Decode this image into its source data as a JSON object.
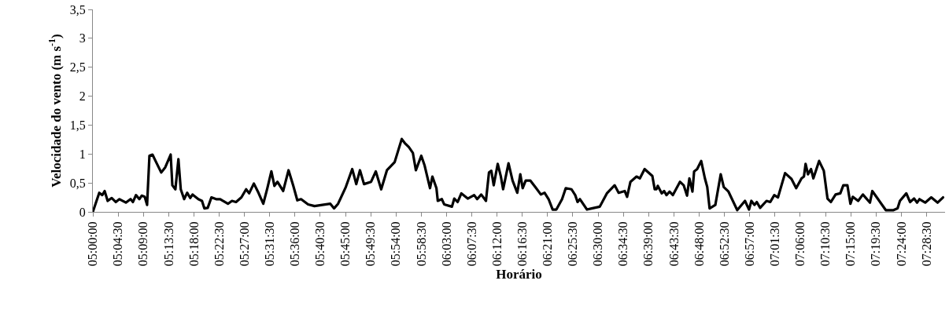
{
  "chart_data": {
    "type": "line",
    "xlabel": "Horário",
    "ylabel": "Velocidade do vento (m s$^{-1}$)",
    "x": [
      5.0,
      5.019,
      5.028,
      5.035,
      5.044,
      5.056,
      5.068,
      5.079,
      5.098,
      5.112,
      5.119,
      5.128,
      5.138,
      5.145,
      5.154,
      5.161,
      5.168,
      5.177,
      5.187,
      5.203,
      5.215,
      5.231,
      5.236,
      5.245,
      5.254,
      5.261,
      5.271,
      5.28,
      5.289,
      5.296,
      5.313,
      5.324,
      5.331,
      5.341,
      5.352,
      5.366,
      5.378,
      5.392,
      5.401,
      5.413,
      5.425,
      5.441,
      5.455,
      5.464,
      5.478,
      5.49,
      5.506,
      5.518,
      5.53,
      5.539,
      5.548,
      5.565,
      5.581,
      5.595,
      5.607,
      5.618,
      5.639,
      5.658,
      5.681,
      5.705,
      5.716,
      5.728,
      5.751,
      5.77,
      5.782,
      5.793,
      5.805,
      5.826,
      5.84,
      5.856,
      5.873,
      5.896,
      5.917,
      5.926,
      5.938,
      5.95,
      5.959,
      5.975,
      5.985,
      6.001,
      6.008,
      6.02,
      6.024,
      6.036,
      6.043,
      6.066,
      6.073,
      6.083,
      6.094,
      6.113,
      6.132,
      6.141,
      6.153,
      6.167,
      6.176,
      6.183,
      6.19,
      6.202,
      6.211,
      6.218,
      6.234,
      6.246,
      6.26,
      6.269,
      6.276,
      6.285,
      6.299,
      6.316,
      6.33,
      6.341,
      6.353,
      6.365,
      6.376,
      6.393,
      6.404,
      6.421,
      6.432,
      6.439,
      6.446,
      6.467,
      6.481,
      6.505,
      6.526,
      6.549,
      6.561,
      6.579,
      6.586,
      6.596,
      6.614,
      6.624,
      6.638,
      6.661,
      6.668,
      6.673,
      6.677,
      6.689,
      6.696,
      6.703,
      6.712,
      6.722,
      6.743,
      6.754,
      6.764,
      6.771,
      6.78,
      6.785,
      6.794,
      6.806,
      6.817,
      6.824,
      6.831,
      6.848,
      6.864,
      6.873,
      6.887,
      6.913,
      6.936,
      6.948,
      6.955,
      6.964,
      6.971,
      6.981,
      7.0,
      7.011,
      7.023,
      7.034,
      7.055,
      7.074,
      7.088,
      7.104,
      7.111,
      7.116,
      7.123,
      7.132,
      7.139,
      7.156,
      7.17,
      7.181,
      7.191,
      7.205,
      7.219,
      7.228,
      7.24,
      7.249,
      7.256,
      7.272,
      7.286,
      7.307,
      7.314,
      7.331,
      7.354,
      7.377,
      7.389,
      7.396,
      7.415,
      7.426,
      7.438,
      7.447,
      7.454,
      7.471,
      7.489,
      7.508,
      7.524
    ],
    "series": [
      {
        "color": "#000000",
        "values": [
          0.0,
          0.33,
          0.29,
          0.36,
          0.19,
          0.24,
          0.17,
          0.22,
          0.16,
          0.22,
          0.17,
          0.29,
          0.22,
          0.28,
          0.26,
          0.12,
          0.97,
          0.99,
          0.87,
          0.68,
          0.77,
          0.99,
          0.46,
          0.39,
          0.91,
          0.39,
          0.22,
          0.33,
          0.24,
          0.3,
          0.22,
          0.19,
          0.06,
          0.07,
          0.25,
          0.22,
          0.22,
          0.17,
          0.14,
          0.19,
          0.17,
          0.25,
          0.39,
          0.32,
          0.49,
          0.35,
          0.14,
          0.41,
          0.7,
          0.45,
          0.52,
          0.36,
          0.72,
          0.45,
          0.2,
          0.22,
          0.13,
          0.1,
          0.12,
          0.14,
          0.06,
          0.14,
          0.43,
          0.74,
          0.48,
          0.72,
          0.48,
          0.52,
          0.7,
          0.39,
          0.72,
          0.86,
          1.26,
          1.19,
          1.12,
          1.02,
          0.72,
          0.97,
          0.8,
          0.41,
          0.61,
          0.41,
          0.19,
          0.22,
          0.13,
          0.09,
          0.23,
          0.17,
          0.32,
          0.23,
          0.29,
          0.22,
          0.3,
          0.19,
          0.68,
          0.71,
          0.46,
          0.83,
          0.62,
          0.39,
          0.84,
          0.54,
          0.33,
          0.65,
          0.41,
          0.54,
          0.54,
          0.41,
          0.3,
          0.33,
          0.22,
          0.04,
          0.04,
          0.22,
          0.41,
          0.39,
          0.29,
          0.17,
          0.22,
          0.04,
          0.06,
          0.09,
          0.32,
          0.46,
          0.33,
          0.36,
          0.26,
          0.52,
          0.61,
          0.58,
          0.74,
          0.62,
          0.39,
          0.39,
          0.45,
          0.32,
          0.36,
          0.29,
          0.35,
          0.29,
          0.52,
          0.46,
          0.28,
          0.58,
          0.35,
          0.7,
          0.74,
          0.88,
          0.58,
          0.43,
          0.06,
          0.12,
          0.65,
          0.43,
          0.35,
          0.03,
          0.19,
          0.04,
          0.19,
          0.12,
          0.17,
          0.07,
          0.19,
          0.17,
          0.29,
          0.25,
          0.67,
          0.57,
          0.41,
          0.58,
          0.61,
          0.83,
          0.65,
          0.74,
          0.58,
          0.88,
          0.71,
          0.23,
          0.17,
          0.3,
          0.32,
          0.46,
          0.46,
          0.14,
          0.26,
          0.19,
          0.3,
          0.16,
          0.36,
          0.22,
          0.03,
          0.03,
          0.06,
          0.19,
          0.32,
          0.17,
          0.23,
          0.16,
          0.22,
          0.16,
          0.25,
          0.16,
          0.25
        ]
      }
    ],
    "xlim": [
      5.0,
      7.53
    ],
    "xticks": [
      {
        "value": 5.0,
        "label": "05:00:00"
      },
      {
        "value": 5.075,
        "label": "05:04:30"
      },
      {
        "value": 5.15,
        "label": "05:09:00"
      },
      {
        "value": 5.225,
        "label": "05:13:30"
      },
      {
        "value": 5.3,
        "label": "05:18:00"
      },
      {
        "value": 5.375,
        "label": "05:22:30"
      },
      {
        "value": 5.45,
        "label": "05:27:00"
      },
      {
        "value": 5.525,
        "label": "05:31:30"
      },
      {
        "value": 5.6,
        "label": "05:36:00"
      },
      {
        "value": 5.675,
        "label": "05:40:30"
      },
      {
        "value": 5.75,
        "label": "05:45:00"
      },
      {
        "value": 5.825,
        "label": "05:49:30"
      },
      {
        "value": 5.9,
        "label": "05:54:00"
      },
      {
        "value": 5.975,
        "label": "05:58:30"
      },
      {
        "value": 6.05,
        "label": "06:03:00"
      },
      {
        "value": 6.125,
        "label": "06:07:30"
      },
      {
        "value": 6.2,
        "label": "06:12:00"
      },
      {
        "value": 6.275,
        "label": "06:16:30"
      },
      {
        "value": 6.35,
        "label": "06:21:00"
      },
      {
        "value": 6.425,
        "label": "06:25:30"
      },
      {
        "value": 6.5,
        "label": "06:30:00"
      },
      {
        "value": 6.575,
        "label": "06:34:30"
      },
      {
        "value": 6.65,
        "label": "06:39:00"
      },
      {
        "value": 6.725,
        "label": "06:43:30"
      },
      {
        "value": 6.8,
        "label": "06:48:00"
      },
      {
        "value": 6.875,
        "label": "06:52:30"
      },
      {
        "value": 6.95,
        "label": "06:57:00"
      },
      {
        "value": 7.025,
        "label": "07:01:30"
      },
      {
        "value": 7.1,
        "label": "07:06:00"
      },
      {
        "value": 7.175,
        "label": "07:10:30"
      },
      {
        "value": 7.25,
        "label": "07:15:00"
      },
      {
        "value": 7.325,
        "label": "07:19:30"
      },
      {
        "value": 7.4,
        "label": "07:24:00"
      },
      {
        "value": 7.475,
        "label": "07:28:30"
      }
    ],
    "ylim": [
      0,
      3.5
    ],
    "yticks": [
      0,
      {
        "value": 0.5,
        "label": "0,5"
      },
      1,
      {
        "value": 1.5,
        "label": "1,5"
      },
      2,
      {
        "value": 2.5,
        "label": "2,5"
      },
      3,
      {
        "value": 3.5,
        "label": "3,5"
      }
    ],
    "marker": "none",
    "line_style": "solid"
  }
}
